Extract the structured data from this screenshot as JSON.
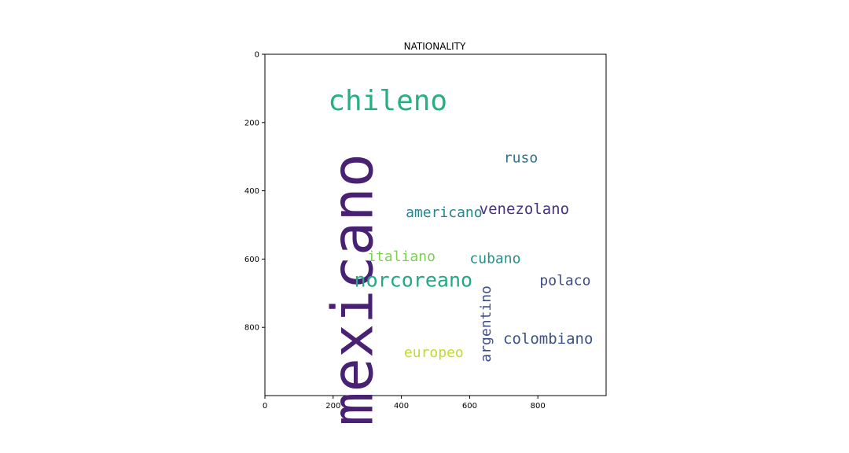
{
  "chart_data": {
    "type": "wordcloud",
    "title": "NATIONALITY",
    "xlabel": "",
    "ylabel": "",
    "xlim": [
      0,
      1000
    ],
    "ylim": [
      0,
      1000
    ],
    "y_inverted": true,
    "x_ticks": [
      "0",
      "200",
      "400",
      "600",
      "800"
    ],
    "y_ticks": [
      "0",
      "200",
      "400",
      "600",
      "800"
    ],
    "grid": false,
    "words": [
      {
        "text": "mexicano",
        "x": 270,
        "y": 690,
        "size": 72,
        "color": "#482173",
        "orientation": "vertical"
      },
      {
        "text": "chileno",
        "x": 360,
        "y": 140,
        "size": 36,
        "color": "#29af7f",
        "orientation": "horizontal"
      },
      {
        "text": "norcoreano",
        "x": 435,
        "y": 665,
        "size": 25,
        "color": "#22a884",
        "orientation": "horizontal"
      },
      {
        "text": "venezolano",
        "x": 760,
        "y": 455,
        "size": 19,
        "color": "#46327e",
        "orientation": "horizontal"
      },
      {
        "text": "americano",
        "x": 525,
        "y": 465,
        "size": 18,
        "color": "#25858e",
        "orientation": "horizontal"
      },
      {
        "text": "colombiano",
        "x": 830,
        "y": 835,
        "size": 19,
        "color": "#3b528b",
        "orientation": "horizontal"
      },
      {
        "text": "italiano",
        "x": 400,
        "y": 595,
        "size": 18,
        "color": "#7ad151",
        "orientation": "horizontal"
      },
      {
        "text": "cubano",
        "x": 675,
        "y": 600,
        "size": 18,
        "color": "#21918c",
        "orientation": "horizontal"
      },
      {
        "text": "polaco",
        "x": 880,
        "y": 665,
        "size": 18,
        "color": "#3e4989",
        "orientation": "horizontal"
      },
      {
        "text": "ruso",
        "x": 750,
        "y": 305,
        "size": 18,
        "color": "#2c728e",
        "orientation": "horizontal"
      },
      {
        "text": "argentino",
        "x": 650,
        "y": 790,
        "size": 18,
        "color": "#3e4c8a",
        "orientation": "vertical"
      },
      {
        "text": "europeo",
        "x": 495,
        "y": 875,
        "size": 18,
        "color": "#bddf26",
        "orientation": "horizontal"
      }
    ]
  }
}
